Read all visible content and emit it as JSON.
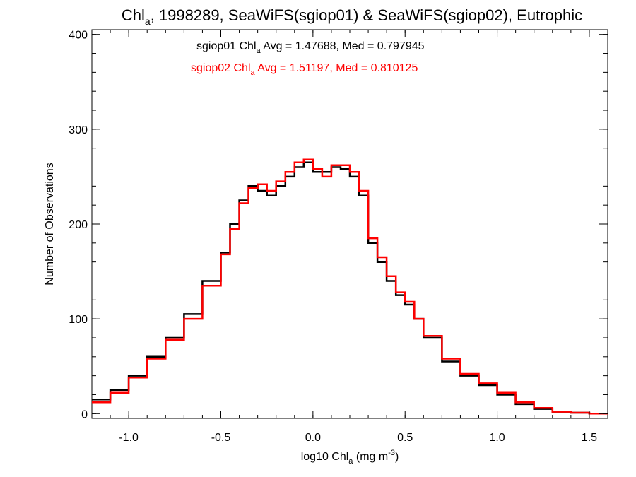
{
  "chart_data": {
    "type": "line",
    "title": {
      "main": "Chl",
      "sub": "a",
      "rest": ", 1998289, SeaWiFS(sgiop01) & SeaWiFS(sgiop02), Eutrophic"
    },
    "xlabel": {
      "pre": "log10 Chl",
      "sub": "a",
      "mid": " (mg m",
      "sup": "-3",
      "post": ")"
    },
    "ylabel": "Number of Observations",
    "xlim": [
      -1.2,
      1.6
    ],
    "ylim": [
      -5,
      405
    ],
    "x_ticks": [
      -1.0,
      -0.5,
      0.0,
      0.5,
      1.0,
      1.5
    ],
    "x_tick_labels": [
      "-1.0",
      "-0.5",
      "0.0",
      "0.5",
      "1.0",
      "1.5"
    ],
    "y_ticks": [
      0,
      100,
      200,
      300,
      400
    ],
    "y_tick_labels": [
      "0",
      "100",
      "200",
      "300",
      "400"
    ],
    "grid": false,
    "series": [
      {
        "label_pre": "sgiop01 Chl",
        "label_sub": "a",
        "label_post": " Avg = 1.47688, Med = 0.797945",
        "color": "#000000",
        "x": [
          -1.2,
          -1.1,
          -1.0,
          -0.9,
          -0.8,
          -0.7,
          -0.6,
          -0.5,
          -0.45,
          -0.4,
          -0.35,
          -0.3,
          -0.25,
          -0.2,
          -0.15,
          -0.1,
          -0.05,
          0.0,
          0.05,
          0.1,
          0.15,
          0.2,
          0.25,
          0.3,
          0.35,
          0.4,
          0.45,
          0.5,
          0.55,
          0.6,
          0.7,
          0.8,
          0.9,
          1.0,
          1.1,
          1.2,
          1.3,
          1.4,
          1.5,
          1.6
        ],
        "y": [
          15,
          25,
          40,
          60,
          80,
          105,
          140,
          170,
          200,
          225,
          240,
          235,
          230,
          240,
          250,
          260,
          265,
          255,
          255,
          260,
          258,
          250,
          230,
          180,
          160,
          140,
          125,
          115,
          100,
          80,
          55,
          40,
          30,
          20,
          10,
          5,
          2,
          1,
          0,
          0
        ]
      },
      {
        "label_pre": "sgiop02 Chl",
        "label_sub": "a",
        "label_post": " Avg = 1.51197, Med = 0.810125",
        "color": "#ff0000",
        "x": [
          -1.2,
          -1.1,
          -1.0,
          -0.9,
          -0.8,
          -0.7,
          -0.6,
          -0.5,
          -0.45,
          -0.4,
          -0.35,
          -0.3,
          -0.25,
          -0.2,
          -0.15,
          -0.1,
          -0.05,
          0.0,
          0.05,
          0.1,
          0.15,
          0.2,
          0.25,
          0.3,
          0.35,
          0.4,
          0.45,
          0.5,
          0.55,
          0.6,
          0.7,
          0.8,
          0.9,
          1.0,
          1.1,
          1.2,
          1.3,
          1.4,
          1.5,
          1.6
        ],
        "y": [
          12,
          22,
          38,
          58,
          78,
          100,
          135,
          168,
          195,
          222,
          238,
          242,
          235,
          245,
          255,
          265,
          268,
          258,
          250,
          262,
          262,
          255,
          235,
          185,
          165,
          145,
          128,
          118,
          100,
          82,
          58,
          42,
          32,
          22,
          12,
          6,
          2,
          1,
          0,
          0
        ]
      }
    ]
  }
}
